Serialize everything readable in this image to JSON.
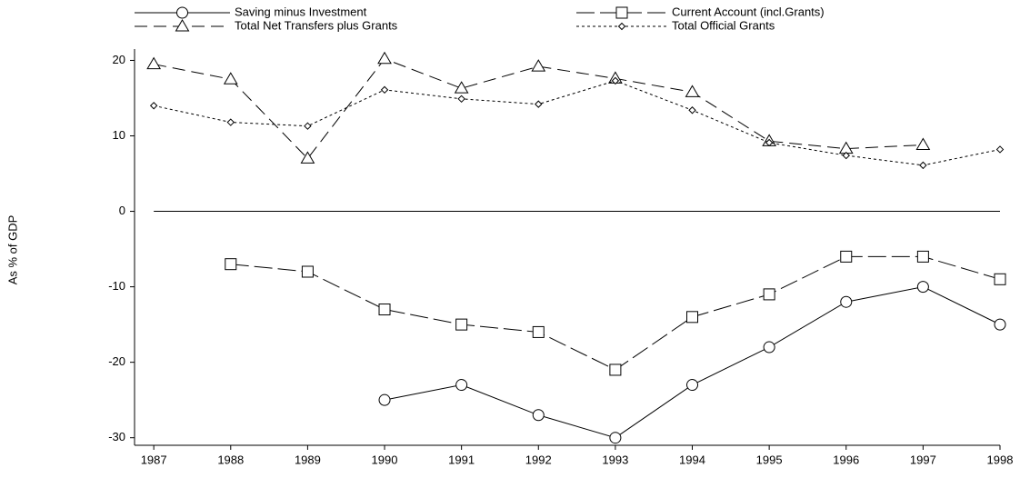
{
  "chart_data": {
    "type": "line",
    "y_label": "As % of GDP",
    "x": [
      1987,
      1988,
      1989,
      1990,
      1991,
      1992,
      1993,
      1994,
      1995,
      1996,
      1997,
      1998
    ],
    "xlim": [
      1986.75,
      1998
    ],
    "xticks": [
      1987,
      1988,
      1989,
      1990,
      1991,
      1992,
      1993,
      1994,
      1995,
      1996,
      1997,
      1998
    ],
    "ylim": [
      -31,
      21.5
    ],
    "yticks": [
      -30,
      -20,
      -10,
      0,
      10,
      20
    ],
    "reference_line": 0,
    "series": [
      {
        "name": "Saving minus Investment",
        "color": "#000000",
        "marker": "circle",
        "dash": "solid",
        "values": [
          null,
          null,
          null,
          -25,
          -23,
          -27,
          -30,
          -23,
          -18,
          -12,
          -10,
          -15
        ]
      },
      {
        "name": "Current Account (incl.Grants)",
        "color": "#000000",
        "marker": "square",
        "dash": "longdash",
        "values": [
          null,
          -7,
          -8,
          -13,
          -15,
          -16,
          -21,
          -14,
          -11,
          -6,
          -6,
          -9
        ]
      },
      {
        "name": "Total Net Transfers plus Grants",
        "color": "#000000",
        "marker": "triangle",
        "dash": "dash",
        "values": [
          19.5,
          17.5,
          7,
          20.2,
          16.3,
          19.2,
          17.6,
          15.8,
          9.3,
          8.3,
          8.8,
          null
        ]
      },
      {
        "name": "Total Official Grants",
        "color": "#000000",
        "marker": "diamond",
        "dash": "dot",
        "values": [
          14,
          11.8,
          11.3,
          16.1,
          14.9,
          14.2,
          17.3,
          13.4,
          9.1,
          7.4,
          6.1,
          8.2
        ]
      }
    ]
  }
}
